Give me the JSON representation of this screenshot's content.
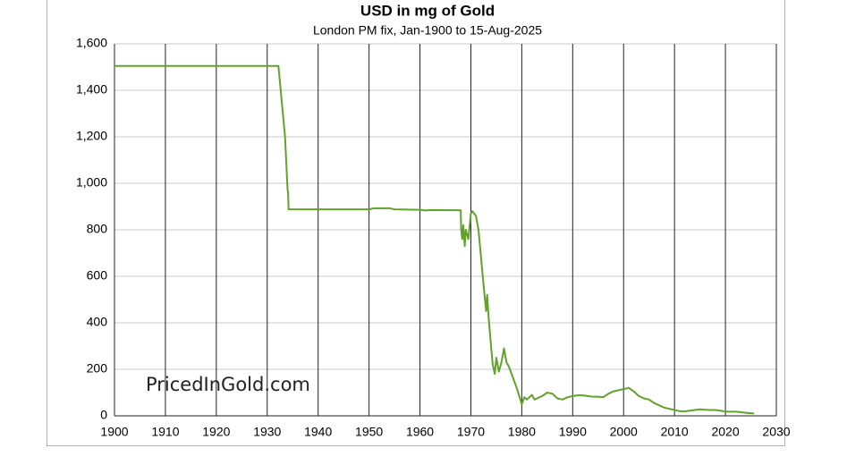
{
  "chart_data": {
    "type": "line",
    "title": "USD in mg of Gold",
    "subtitle": "London PM fix, Jan-1900 to 15-Aug-2025",
    "annotation": "PricedInGold.com",
    "x": [
      1900,
      1932.2,
      1933.5,
      1934,
      1934.1,
      1934.2,
      1950,
      1951,
      1954,
      1955,
      1960,
      1961,
      1962,
      1967,
      1968,
      1968.1,
      1968.3,
      1968.5,
      1968.8,
      1969,
      1969.5,
      1970,
      1970.3,
      1971,
      1971.5,
      1972,
      1972.5,
      1973,
      1973.2,
      1973.5,
      1974,
      1974.3,
      1974.7,
      1975,
      1975.5,
      1976,
      1976.5,
      1977,
      1977.5,
      1978,
      1979,
      1980,
      1980.5,
      1981,
      1982,
      1982.5,
      1983,
      1984,
      1985,
      1986,
      1987,
      1988,
      1989,
      1990,
      1991,
      1992,
      1993,
      1994,
      1995,
      1996,
      1997,
      1998,
      1999,
      2000,
      2001,
      2002,
      2003,
      2004,
      2005,
      2006,
      2007,
      2008,
      2009,
      2010,
      2011,
      2012,
      2013,
      2014,
      2015,
      2016,
      2017,
      2018,
      2019,
      2020,
      2021,
      2022,
      2023,
      2024,
      2025.6
    ],
    "series": [
      {
        "name": "USD in mg of Gold",
        "color": "#62a12c",
        "values": [
          1505,
          1505,
          1200,
          970,
          960,
          888,
          888,
          893,
          893,
          888,
          886,
          883,
          885,
          884,
          884,
          800,
          760,
          820,
          730,
          800,
          760,
          870,
          880,
          860,
          800,
          680,
          560,
          450,
          520,
          420,
          290,
          220,
          180,
          250,
          190,
          230,
          290,
          230,
          210,
          180,
          120,
          50,
          80,
          70,
          90,
          70,
          75,
          85,
          100,
          95,
          75,
          70,
          80,
          85,
          88,
          88,
          85,
          82,
          82,
          80,
          95,
          105,
          110,
          115,
          120,
          105,
          85,
          75,
          70,
          55,
          45,
          35,
          30,
          25,
          20,
          19,
          22,
          25,
          28,
          26,
          25,
          25,
          22,
          18,
          18,
          18,
          16,
          13,
          10
        ]
      }
    ],
    "xlim": [
      1900,
      2030
    ],
    "xticks": [
      1900,
      1910,
      1920,
      1930,
      1940,
      1950,
      1960,
      1970,
      1980,
      1990,
      2000,
      2010,
      2020,
      2030
    ],
    "ylim": [
      0,
      1600
    ],
    "yticks": [
      0,
      200,
      400,
      600,
      800,
      {
        "value": 1000,
        "label": "1,000"
      },
      {
        "value": 1200,
        "label": "1,200"
      },
      {
        "value": 1400,
        "label": "1,400"
      },
      {
        "value": 1600,
        "label": "1,600"
      }
    ],
    "grid": true
  }
}
